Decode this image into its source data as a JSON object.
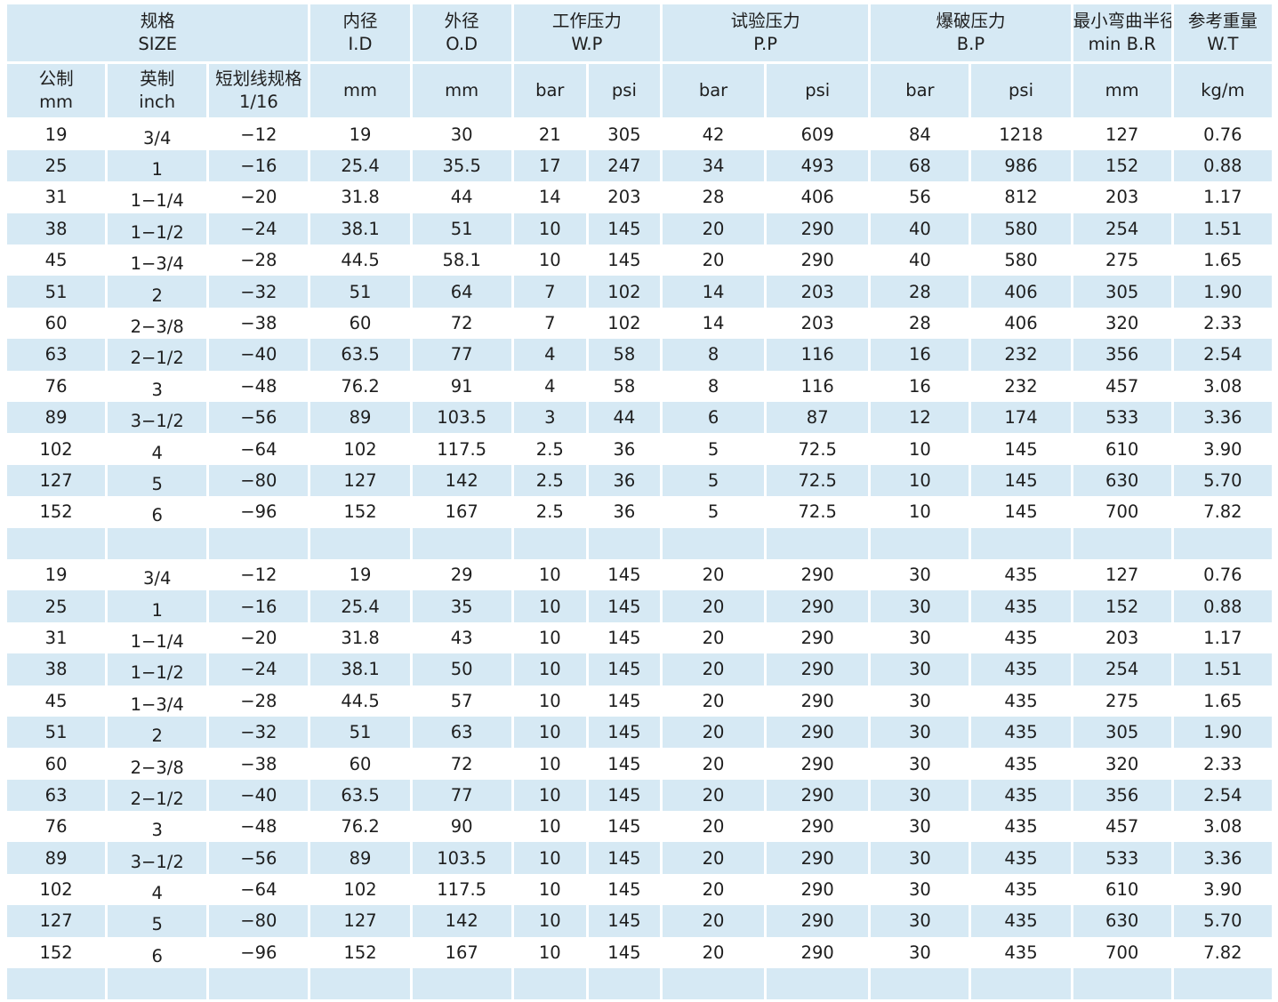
{
  "header": {
    "size": {
      "cn": "规格",
      "en": "SIZE"
    },
    "id": {
      "cn": "内径",
      "en": "I.D"
    },
    "od": {
      "cn": "外径",
      "en": "O.D"
    },
    "wp": {
      "cn": "工作压力",
      "en": "W.P"
    },
    "pp": {
      "cn": "试验压力",
      "en": "P.P"
    },
    "bp": {
      "cn": "爆破压力",
      "en": "B.P"
    },
    "br": {
      "cn": "最小弯曲半径",
      "en": "min B.R"
    },
    "wt": {
      "cn": "参考重量",
      "en": "W.T"
    },
    "metric": {
      "cn": "公制",
      "en": "mm"
    },
    "imperial": {
      "cn": "英制",
      "en": "inch"
    },
    "dash": {
      "cn": "短划线规格",
      "en": "1/16"
    },
    "unit_mm": "mm",
    "unit_bar": "bar",
    "unit_psi": "psi",
    "unit_kgm": "kg/m"
  },
  "table1": [
    [
      "19",
      "3/4",
      "−12",
      "19",
      "30",
      "21",
      "305",
      "42",
      "609",
      "84",
      "1218",
      "127",
      "0.76"
    ],
    [
      "25",
      "1",
      "−16",
      "25.4",
      "35.5",
      "17",
      "247",
      "34",
      "493",
      "68",
      "986",
      "152",
      "0.88"
    ],
    [
      "31",
      "1−1/4",
      "−20",
      "31.8",
      "44",
      "14",
      "203",
      "28",
      "406",
      "56",
      "812",
      "203",
      "1.17"
    ],
    [
      "38",
      "1−1/2",
      "−24",
      "38.1",
      "51",
      "10",
      "145",
      "20",
      "290",
      "40",
      "580",
      "254",
      "1.51"
    ],
    [
      "45",
      "1−3/4",
      "−28",
      "44.5",
      "58.1",
      "10",
      "145",
      "20",
      "290",
      "40",
      "580",
      "275",
      "1.65"
    ],
    [
      "51",
      "2",
      "−32",
      "51",
      "64",
      "7",
      "102",
      "14",
      "203",
      "28",
      "406",
      "305",
      "1.90"
    ],
    [
      "60",
      "2−3/8",
      "−38",
      "60",
      "72",
      "7",
      "102",
      "14",
      "203",
      "28",
      "406",
      "320",
      "2.33"
    ],
    [
      "63",
      "2−1/2",
      "−40",
      "63.5",
      "77",
      "4",
      "58",
      "8",
      "116",
      "16",
      "232",
      "356",
      "2.54"
    ],
    [
      "76",
      "3",
      "−48",
      "76.2",
      "91",
      "4",
      "58",
      "8",
      "116",
      "16",
      "232",
      "457",
      "3.08"
    ],
    [
      "89",
      "3−1/2",
      "−56",
      "89",
      "103.5",
      "3",
      "44",
      "6",
      "87",
      "12",
      "174",
      "533",
      "3.36"
    ],
    [
      "102",
      "4",
      "−64",
      "102",
      "117.5",
      "2.5",
      "36",
      "5",
      "72.5",
      "10",
      "145",
      "610",
      "3.90"
    ],
    [
      "127",
      "5",
      "−80",
      "127",
      "142",
      "2.5",
      "36",
      "5",
      "72.5",
      "10",
      "145",
      "630",
      "5.70"
    ],
    [
      "152",
      "6",
      "−96",
      "152",
      "167",
      "2.5",
      "36",
      "5",
      "72.5",
      "10",
      "145",
      "700",
      "7.82"
    ]
  ],
  "table2": [
    [
      "19",
      "3/4",
      "−12",
      "19",
      "29",
      "10",
      "145",
      "20",
      "290",
      "30",
      "435",
      "127",
      "0.76"
    ],
    [
      "25",
      "1",
      "−16",
      "25.4",
      "35",
      "10",
      "145",
      "20",
      "290",
      "30",
      "435",
      "152",
      "0.88"
    ],
    [
      "31",
      "1−1/4",
      "−20",
      "31.8",
      "43",
      "10",
      "145",
      "20",
      "290",
      "30",
      "435",
      "203",
      "1.17"
    ],
    [
      "38",
      "1−1/2",
      "−24",
      "38.1",
      "50",
      "10",
      "145",
      "20",
      "290",
      "30",
      "435",
      "254",
      "1.51"
    ],
    [
      "45",
      "1−3/4",
      "−28",
      "44.5",
      "57",
      "10",
      "145",
      "20",
      "290",
      "30",
      "435",
      "275",
      "1.65"
    ],
    [
      "51",
      "2",
      "−32",
      "51",
      "63",
      "10",
      "145",
      "20",
      "290",
      "30",
      "435",
      "305",
      "1.90"
    ],
    [
      "60",
      "2−3/8",
      "−38",
      "60",
      "72",
      "10",
      "145",
      "20",
      "290",
      "30",
      "435",
      "320",
      "2.33"
    ],
    [
      "63",
      "2−1/2",
      "−40",
      "63.5",
      "77",
      "10",
      "145",
      "20",
      "290",
      "30",
      "435",
      "356",
      "2.54"
    ],
    [
      "76",
      "3",
      "−48",
      "76.2",
      "90",
      "10",
      "145",
      "20",
      "290",
      "30",
      "435",
      "457",
      "3.08"
    ],
    [
      "89",
      "3−1/2",
      "−56",
      "89",
      "103.5",
      "10",
      "145",
      "20",
      "290",
      "30",
      "435",
      "533",
      "3.36"
    ],
    [
      "102",
      "4",
      "−64",
      "102",
      "117.5",
      "10",
      "145",
      "20",
      "290",
      "30",
      "435",
      "610",
      "3.90"
    ],
    [
      "127",
      "5",
      "−80",
      "127",
      "142",
      "10",
      "145",
      "20",
      "290",
      "30",
      "435",
      "630",
      "5.70"
    ],
    [
      "152",
      "6",
      "−96",
      "152",
      "167",
      "10",
      "145",
      "20",
      "290",
      "30",
      "435",
      "700",
      "7.82"
    ]
  ]
}
